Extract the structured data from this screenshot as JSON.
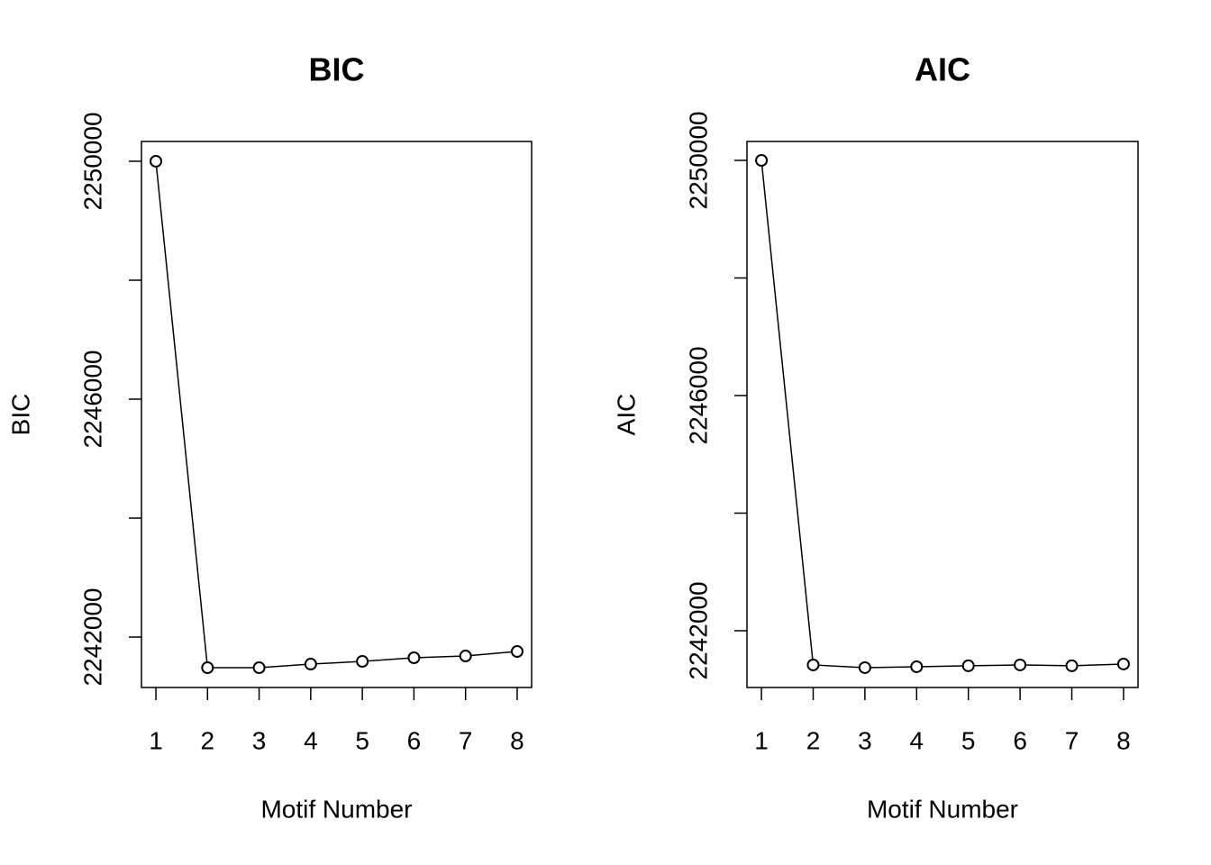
{
  "chart_data": [
    {
      "type": "line",
      "title": "BIC",
      "xlabel": "Motif Number",
      "ylabel": "BIC",
      "color": "#000000",
      "x": [
        1,
        2,
        3,
        4,
        5,
        6,
        7,
        8
      ],
      "values": [
        2250000,
        2241485,
        2241485,
        2241545,
        2241591,
        2241652,
        2241682,
        2241758
      ],
      "xlim": [
        0.72,
        8.28
      ],
      "ylim": [
        2241152,
        2250333
      ],
      "xticks": [
        1,
        2,
        3,
        4,
        5,
        6,
        7,
        8
      ],
      "yticks": [
        2242000,
        2246000,
        2250000
      ],
      "yticks_minor": [
        2244000,
        2248000
      ]
    },
    {
      "type": "line",
      "title": "AIC",
      "xlabel": "Motif Number",
      "ylabel": "AIC",
      "color": "#000000",
      "x": [
        1,
        2,
        3,
        4,
        5,
        6,
        7,
        8
      ],
      "values": [
        2250000,
        2241418,
        2241372,
        2241387,
        2241403,
        2241418,
        2241403,
        2241433
      ],
      "xlim": [
        0.72,
        8.28
      ],
      "ylim": [
        2241034,
        2250322
      ],
      "xticks": [
        1,
        2,
        3,
        4,
        5,
        6,
        7,
        8
      ],
      "yticks": [
        2242000,
        2246000,
        2250000
      ],
      "yticks_minor": [
        2244000,
        2248000
      ]
    }
  ]
}
